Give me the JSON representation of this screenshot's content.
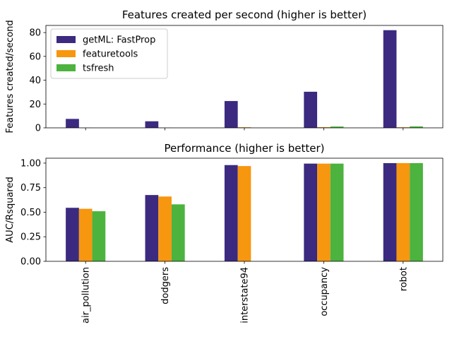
{
  "chart_data": [
    {
      "type": "bar",
      "title": "Features created per second (higher is better)",
      "xlabel": "",
      "ylabel": "Features created/second",
      "categories": [
        "air_pollution",
        "dodgers",
        "interstate94",
        "occupancy",
        "robot"
      ],
      "ylim": [
        0,
        86
      ],
      "yticks": [
        0,
        20,
        40,
        60,
        80
      ],
      "ytick_labels": [
        "0",
        "20",
        "40",
        "60",
        "80"
      ],
      "legend": "top-left",
      "grid": false,
      "series": [
        {
          "name": "getML: FastProp",
          "color": "#3b2a80",
          "values": [
            7.5,
            5.5,
            22.5,
            30.3,
            82
          ]
        },
        {
          "name": "featuretools",
          "color": "#f7960f",
          "values": [
            0.1,
            0.1,
            0.5,
            0.6,
            0.5
          ]
        },
        {
          "name": "tsfresh",
          "color": "#4cb33e",
          "values": [
            0.0,
            0.0,
            0.0,
            1.1,
            1.2
          ]
        }
      ]
    },
    {
      "type": "bar",
      "title": "Performance (higher is better)",
      "xlabel": "",
      "ylabel": "AUC/Rsquared",
      "categories": [
        "air_pollution",
        "dodgers",
        "interstate94",
        "occupancy",
        "robot"
      ],
      "ylim": [
        0,
        1.05
      ],
      "yticks": [
        0,
        0.25,
        0.5,
        0.75,
        1.0
      ],
      "ytick_labels": [
        "0.00",
        "0.25",
        "0.50",
        "0.75",
        "1.00"
      ],
      "grid": false,
      "series": [
        {
          "name": "getML: FastProp",
          "color": "#3b2a80",
          "values": [
            0.545,
            0.675,
            0.98,
            0.995,
            1.0
          ]
        },
        {
          "name": "featuretools",
          "color": "#f7960f",
          "values": [
            0.535,
            0.66,
            0.97,
            0.995,
            1.0
          ]
        },
        {
          "name": "tsfresh",
          "color": "#4cb33e",
          "values": [
            0.51,
            0.58,
            0.0,
            0.995,
            1.0
          ]
        }
      ]
    }
  ]
}
